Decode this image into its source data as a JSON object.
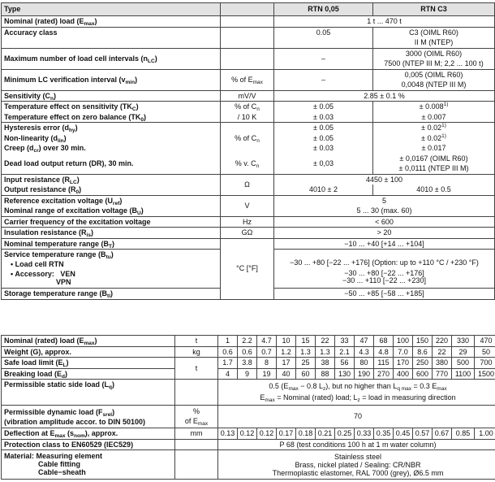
{
  "top": {
    "header": {
      "type": "Type",
      "col1": "RTN 0,05",
      "col2": "RTN C3"
    },
    "nominal_load": {
      "label": "Nominal (rated) load (E_{max})",
      "value": "1 t ... 470 t"
    },
    "accuracy": {
      "label": "Accuracy class",
      "col1": "0.05",
      "col2": [
        "C3 (OIML R60)",
        "II M (NTEP)"
      ]
    },
    "max_intervals": {
      "label": "Maximum number of load cell intervals (n_{LC})",
      "col1": "–",
      "col2": [
        "3000 (OIML R60)",
        "7500 (NTEP III M; 2,2 ... 100 t)"
      ]
    },
    "min_lc": {
      "label": "Minimum LC verification interval (v_{min})",
      "unit": "% of E_{max}",
      "col1": "–",
      "col2": [
        "0,005 (OIML R60)",
        "0,0048 (NTEP III M)"
      ]
    },
    "sensitivity": {
      "label": "Sensitivity (C_{n})",
      "unit": "mV/V",
      "value": "2.85 ± 0.1 %"
    },
    "tk": [
      {
        "label": "Temperature effect on sensitivity (TK_{C})",
        "unit": "% of C_{n}",
        "col1": "± 0.05",
        "col2": "± 0.008^{1)}"
      },
      {
        "label": "Temperature effect on zero balance (TK_{0})",
        "unit": "/ 10 K",
        "col1": "± 0.03",
        "col2": "± 0.007"
      }
    ],
    "errors": {
      "unit_a": "% of C_{n}",
      "unit_b": "% v. C_{n}",
      "rows": [
        {
          "label": "Hysteresis error (d_{hy})",
          "col1": "± 0.05",
          "col2": "± 0.02^{1)}"
        },
        {
          "label": "Non-linearity (d_{lin})",
          "col1": "± 0.05",
          "col2": "± 0.02^{1)}"
        },
        {
          "label": "Creep (d_{cr}) over 30 min.",
          "col1": "± 0.03",
          "col2": "± 0.017"
        },
        {
          "label": "Dead load output return (DR), 30 min.",
          "col1": "± 0,03",
          "col2": [
            "± 0,0167 (OIML R60)",
            "± 0,0111 (NTEP III M)"
          ]
        }
      ]
    },
    "resistance": {
      "unit": "Ω",
      "input": {
        "label": "Input resistance (R_{LC})",
        "value": "4450 ± 100"
      },
      "output": {
        "label": "Output resistance (R_{0})",
        "col1": "4010 ± 2",
        "col2": "4010 ± 0.5"
      }
    },
    "excitation": {
      "unit": "V",
      "reference": {
        "label": "Reference excitation voltage (U_{ref})",
        "value": "5"
      },
      "range": {
        "label": "Nominal range of excitation voltage (B_{U})",
        "value": "5 ... 30 (max. 60)"
      }
    },
    "carrier": {
      "label": "Carrier frequency of the excitation voltage",
      "unit": "Hz",
      "value": "< 600"
    },
    "insulation": {
      "label": "Insulation resistance (R_{is})",
      "unit": "GΩ",
      "value": "> 20"
    },
    "temperature": {
      "unit": "°C [°F]",
      "nominal": {
        "label": "Nominal temperature range (B_{T})",
        "value": "−10 ... +40 [+14 ... +104]"
      },
      "service": {
        "label": "Service temperature range (B_{tu})",
        "load_cell_label": "• Load cell RTN",
        "accessory_label": "• Accessory:",
        "ven_label": "VEN",
        "vpn_label": "VPN",
        "load_cell_value": "−30 ... +80 [−22 ... +176]  (Option: up to +110 °C / +230 °F)",
        "ven_value": "−30 ... +80 [−22 ... +176]",
        "vpn_value": "−30 ... +110 [−22 ... +230]"
      },
      "storage": {
        "label": "Storage temperature range (B_{tl})",
        "value": "−50 ... +85 [−58 ... +185]"
      }
    }
  },
  "bottom": {
    "nominal_load": {
      "label": "Nominal (rated) load (E_{max})",
      "unit": "t",
      "values": [
        "1",
        "2.2",
        "4.7",
        "10",
        "15",
        "22",
        "33",
        "47",
        "68",
        "100",
        "150",
        "220",
        "330",
        "470"
      ]
    },
    "weight": {
      "label": "Weight (G), approx.",
      "unit": "kg",
      "values": [
        "0.6",
        "0.6",
        "0.7",
        "1.2",
        "1.3",
        "1.3",
        "2.1",
        "4.3",
        "4.8",
        "7.0",
        "8.6",
        "22",
        "29",
        "50"
      ]
    },
    "load_unit": "t",
    "safe_load": {
      "label": "Safe load limit (E_{L})",
      "values": [
        "1.7",
        "3.8",
        "8",
        "17",
        "25",
        "38",
        "56",
        "80",
        "115",
        "170",
        "250",
        "380",
        "500",
        "700"
      ]
    },
    "breaking_load": {
      "label": "Breaking load (E_{d})",
      "values": [
        "4",
        "9",
        "19",
        "40",
        "60",
        "88",
        "130",
        "190",
        "270",
        "400",
        "600",
        "770",
        "1100",
        "1500"
      ]
    },
    "side_load": {
      "label": "Permissible static side load (L_{q})",
      "lines": [
        "0.5 (E_{max} − 0.8 L_{z}), but no higher than L_{q max} = 0.3 E_{max}",
        "E_{max} = Nominal (rated) load; L_{z} = load in measuring direction"
      ]
    },
    "dynamic_load": {
      "label_lines": [
        "Permissible dynamic load (F_{srel})",
        "(vibration amplitude accor. to DIN 50100)"
      ],
      "unit_lines": [
        "%",
        "of E_{max}"
      ],
      "value": "70"
    },
    "deflection": {
      "label": "Deflection at E_{max} (s_{nom}), approx.",
      "unit": "mm",
      "values": [
        "0.13",
        "0.12",
        "0.12",
        "0.17",
        "0.18",
        "0.21",
        "0.25",
        "0.33",
        "0.35",
        "0.45",
        "0.57",
        "0.67",
        "0.85",
        "1.00"
      ]
    },
    "protection": {
      "label": "Protection class to EN60529 (IEC529)",
      "value": "P 68 (test conditions 100 h at 1 m water column)"
    },
    "material": {
      "label_lines": [
        "Material:  Measuring element",
        "Cable fitting",
        "Cable−sheath"
      ],
      "values": [
        "Stainless steel",
        "Brass, nickel plated / Sealing: CR/NBR",
        "Thermoplastic elastomer, RAL 7000 (grey), Ø6.5 mm"
      ]
    }
  }
}
